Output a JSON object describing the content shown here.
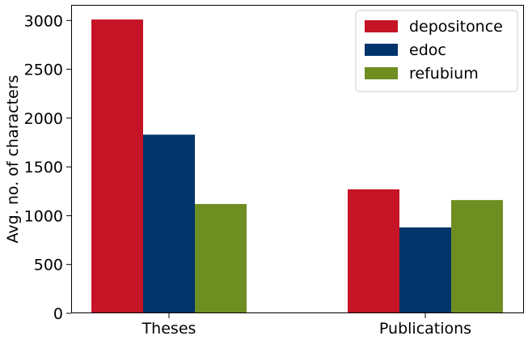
{
  "chart_data": {
    "type": "bar",
    "categories": [
      "Theses",
      "Publications"
    ],
    "series": [
      {
        "name": "depositonce",
        "color": "#c41425",
        "values": [
          3010,
          1270
        ]
      },
      {
        "name": "edoc",
        "color": "#00346a",
        "values": [
          1830,
          880
        ]
      },
      {
        "name": "refubium",
        "color": "#6e8e22",
        "values": [
          1120,
          1160
        ]
      }
    ],
    "title": "",
    "xlabel": "",
    "ylabel": "Avg. no. of characters",
    "ylim": [
      0,
      3160
    ],
    "yticks": [
      0,
      500,
      1000,
      1500,
      2000,
      2500,
      3000
    ],
    "grid": false,
    "legend_position": "top-right"
  }
}
